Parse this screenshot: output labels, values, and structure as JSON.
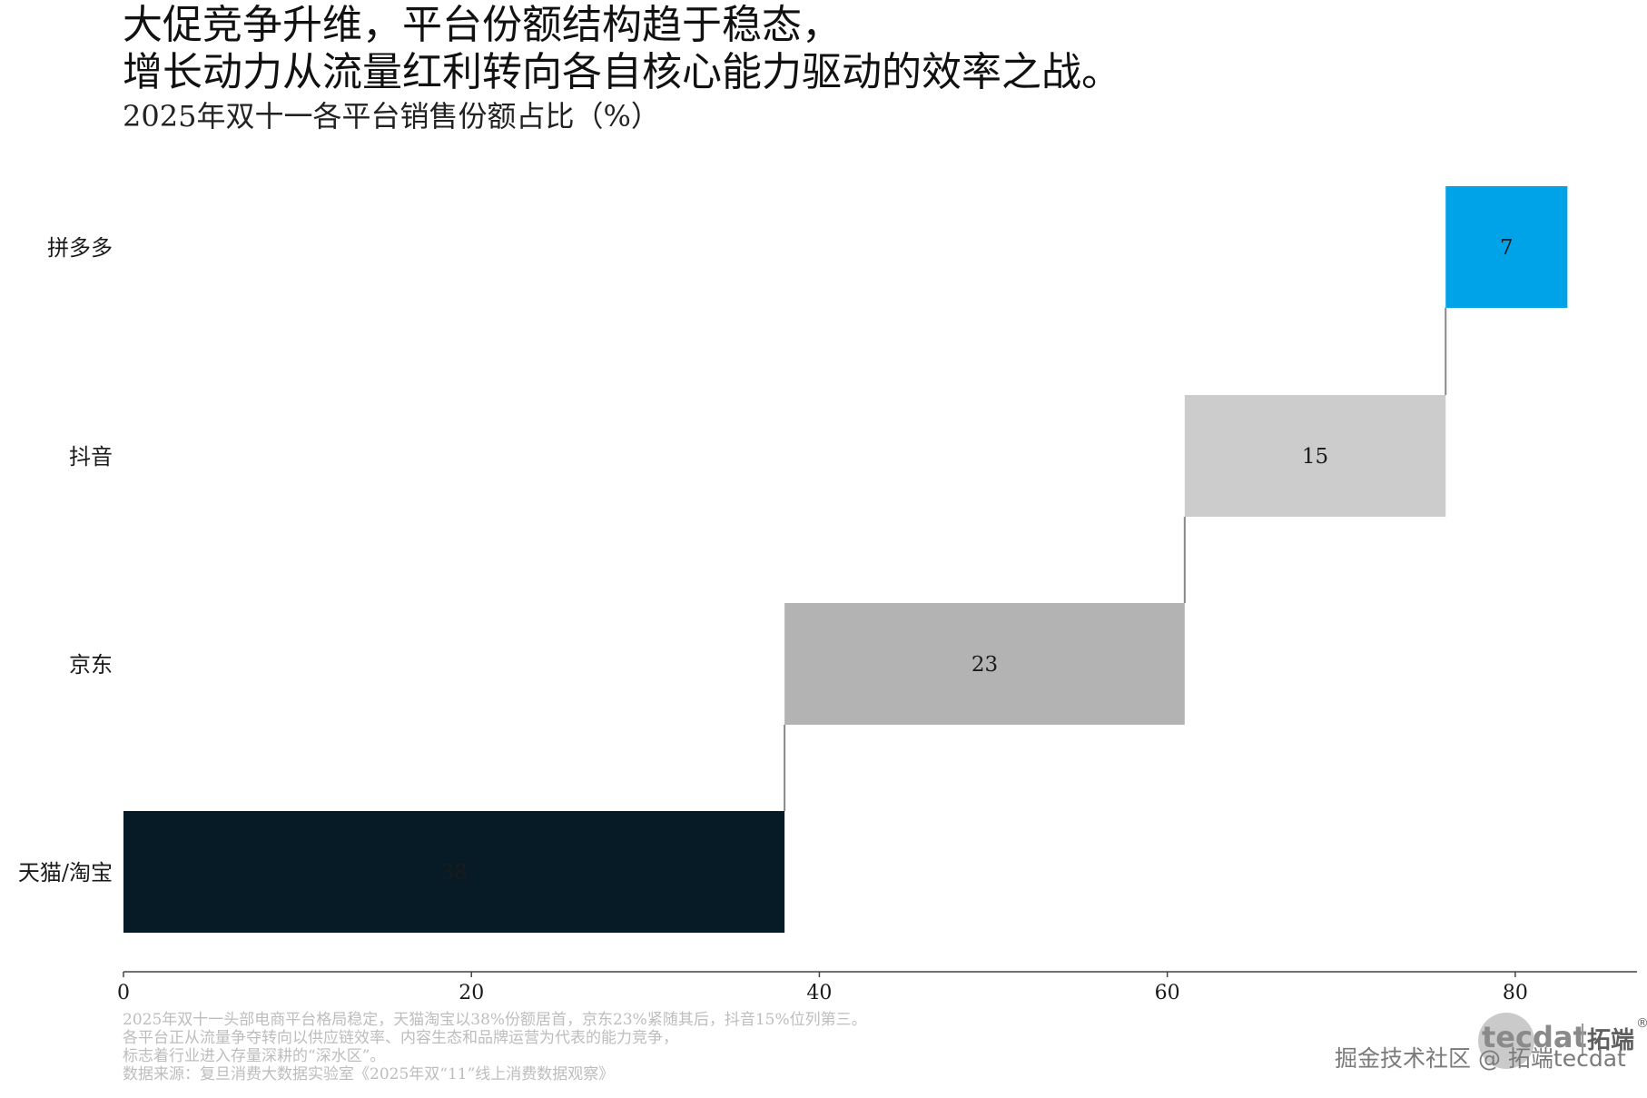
{
  "header": {
    "title_lines": [
      "大促竞争升维，平台份额结构趋于稳态，",
      "增长动力从流量红利转向各自核心能力驱动的效率之战。"
    ],
    "subtitle": "2025年双十一各平台销售份额占比（%）"
  },
  "chart_data": {
    "type": "bar",
    "categories": [
      "天猫/淘宝",
      "京东",
      "抖音",
      "拼多多"
    ],
    "values": [
      38,
      23,
      15,
      7
    ],
    "data_labels": [
      "38",
      "23",
      "15",
      "7"
    ],
    "cumulative_start": [
      0,
      38,
      61,
      76
    ],
    "xlim": [
      0,
      87
    ],
    "xticks": [
      0,
      20,
      40,
      60,
      80
    ],
    "xtick_labels": [
      "0",
      "20",
      "40",
      "60",
      "80"
    ],
    "bar_colors": [
      "#061b26",
      "#b3b3b3",
      "#cccccc",
      "#00a3e8"
    ],
    "label_colors": [
      "#1a1a1a",
      "#1a1a1a",
      "#1a1a1a",
      "#1a1a1a"
    ],
    "connector_color": "#888888",
    "axis_color": "#444444",
    "grid": false,
    "legend": "none"
  },
  "footnote": {
    "lines": [
      "2025年双十一头部电商平台格局稳定，天猫淘宝以38%份额居首，京东23%紧随其后，抖音15%位列第三。",
      "各平台正从流量争夺转向以供应链效率、内容生态和品牌运营为代表的能力竞争，",
      "标志着行业进入存量深耕的“深水区”。",
      "数据来源：复旦消费大数据实验室《2025年双“11”线上消费数据观察》"
    ]
  },
  "watermark": {
    "logo_text": "tecdat",
    "cn_text": "拓端",
    "reg_mark": "®",
    "credit": "掘金技术社区 @ 拓端tecdat"
  }
}
